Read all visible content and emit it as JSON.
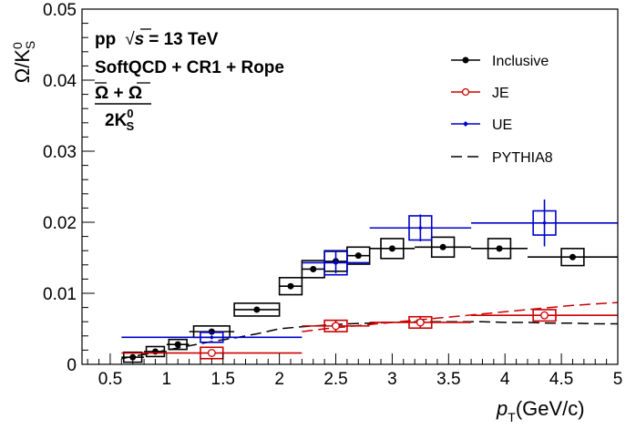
{
  "chart_data": {
    "type": "scatter",
    "title": "",
    "xlabel": {
      "main": "p",
      "sub": "T",
      "rest": "(GeV/c)"
    },
    "ylabel": {
      "main": "Ω/K",
      "sup": "0",
      "sub": "S"
    },
    "xlim": [
      0.25,
      5.0
    ],
    "ylim": [
      0,
      0.05
    ],
    "xticks": [
      0.5,
      1,
      1.5,
      2,
      2.5,
      3,
      3.5,
      4,
      4.5,
      5
    ],
    "xtick_labels": [
      "0.5",
      "1",
      "1.5",
      "2",
      "2.5",
      "3",
      "3.5",
      "4",
      "4.5",
      "5"
    ],
    "yticks": [
      0,
      0.01,
      0.02,
      0.03,
      0.04,
      0.05
    ],
    "ytick_labels": [
      "0",
      "0.01",
      "0.02",
      "0.03",
      "0.04",
      "0.05"
    ],
    "annotations": {
      "line1_pre": "pp",
      "line1_sqrt": "√",
      "line1_s": "s",
      "line1_post": "= 13 TeV",
      "line2": "SoftQCD + CR1 + Rope",
      "ratio_num": "Ω + Ω",
      "ratio_den_pre": "2K",
      "ratio_den_sup": "0",
      "ratio_den_sub": "S"
    },
    "legend": {
      "placement": "top-right",
      "entries": [
        "Inclusive",
        "JE",
        "UE",
        "PYTHIA8"
      ]
    },
    "series": [
      {
        "name": "Inclusive",
        "color": "#000000",
        "marker": "filled-circle",
        "points": [
          {
            "x": 0.7,
            "y": 0.001,
            "xlo": 0.6,
            "xhi": 0.8,
            "ylo": 0.001,
            "yhi": 0.001,
            "sx": 0.08,
            "sy": 0.0007
          },
          {
            "x": 0.9,
            "y": 0.0018,
            "xlo": 0.8,
            "xhi": 1.0,
            "ylo": 0.0018,
            "yhi": 0.0018,
            "sx": 0.08,
            "sy": 0.0007
          },
          {
            "x": 1.1,
            "y": 0.0028,
            "xlo": 1.0,
            "xhi": 1.2,
            "ylo": 0.0028,
            "yhi": 0.0028,
            "sx": 0.08,
            "sy": 0.0007
          },
          {
            "x": 1.4,
            "y": 0.0046,
            "xlo": 1.2,
            "xhi": 1.6,
            "ylo": 0.0042,
            "yhi": 0.005,
            "sx": 0.16,
            "sy": 0.0008
          },
          {
            "x": 1.8,
            "y": 0.0077,
            "xlo": 1.6,
            "xhi": 2.0,
            "ylo": 0.0077,
            "yhi": 0.0077,
            "sx": 0.2,
            "sy": 0.0009
          },
          {
            "x": 2.1,
            "y": 0.011,
            "xlo": 2.0,
            "xhi": 2.2,
            "ylo": 0.0106,
            "yhi": 0.0114,
            "sx": 0.1,
            "sy": 0.0012
          },
          {
            "x": 2.3,
            "y": 0.0134,
            "xlo": 2.2,
            "xhi": 2.4,
            "ylo": 0.013,
            "yhi": 0.0138,
            "sx": 0.1,
            "sy": 0.0012
          },
          {
            "x": 2.5,
            "y": 0.0145,
            "xlo": 2.4,
            "xhi": 2.6,
            "ylo": 0.014,
            "yhi": 0.015,
            "sx": 0.1,
            "sy": 0.0014
          },
          {
            "x": 2.7,
            "y": 0.0153,
            "xlo": 2.6,
            "xhi": 2.8,
            "ylo": 0.0149,
            "yhi": 0.0157,
            "sx": 0.1,
            "sy": 0.0012
          },
          {
            "x": 3.0,
            "y": 0.0163,
            "xlo": 2.8,
            "xhi": 3.2,
            "ylo": 0.0159,
            "yhi": 0.0167,
            "sx": 0.1,
            "sy": 0.0014
          },
          {
            "x": 3.45,
            "y": 0.0165,
            "xlo": 3.2,
            "xhi": 3.7,
            "ylo": 0.0161,
            "yhi": 0.0169,
            "sx": 0.1,
            "sy": 0.0014
          },
          {
            "x": 3.95,
            "y": 0.0163,
            "xlo": 3.7,
            "xhi": 4.2,
            "ylo": 0.0159,
            "yhi": 0.0167,
            "sx": 0.1,
            "sy": 0.0014
          },
          {
            "x": 4.6,
            "y": 0.0151,
            "xlo": 4.2,
            "xhi": 5.0,
            "ylo": 0.0147,
            "yhi": 0.0155,
            "sx": 0.1,
            "sy": 0.0012
          }
        ]
      },
      {
        "name": "JE",
        "color": "#cc0000",
        "marker": "open-circle",
        "points": [
          {
            "x": 1.4,
            "y": 0.0016,
            "xlo": 0.6,
            "xhi": 2.2,
            "ylo": 0.0016,
            "yhi": 0.0016,
            "sx": 0.1,
            "sy": 0.0008
          },
          {
            "x": 2.5,
            "y": 0.0054,
            "xlo": 2.2,
            "xhi": 2.8,
            "ylo": 0.0046,
            "yhi": 0.0062,
            "sx": 0.1,
            "sy": 0.0008
          },
          {
            "x": 3.25,
            "y": 0.0059,
            "xlo": 2.8,
            "xhi": 3.7,
            "ylo": 0.0052,
            "yhi": 0.0066,
            "sx": 0.1,
            "sy": 0.0008
          },
          {
            "x": 4.35,
            "y": 0.0069,
            "xlo": 3.7,
            "xhi": 5.0,
            "ylo": 0.0069,
            "yhi": 0.0069,
            "sx": 0.1,
            "sy": 0.0008
          }
        ]
      },
      {
        "name": "UE",
        "color": "#0000cc",
        "marker": "small-diamond",
        "points": [
          {
            "x": 1.4,
            "y": 0.0038,
            "xlo": 0.6,
            "xhi": 2.2,
            "ylo": 0.0038,
            "yhi": 0.0038,
            "sx": 0.1,
            "sy": 0.0007
          },
          {
            "x": 2.5,
            "y": 0.0143,
            "xlo": 2.2,
            "xhi": 2.8,
            "ylo": 0.0128,
            "yhi": 0.0158,
            "sx": 0.1,
            "sy": 0.0017
          },
          {
            "x": 3.25,
            "y": 0.0192,
            "xlo": 2.8,
            "xhi": 3.7,
            "ylo": 0.0173,
            "yhi": 0.0211,
            "sx": 0.1,
            "sy": 0.0017
          },
          {
            "x": 4.35,
            "y": 0.0199,
            "xlo": 3.7,
            "xhi": 5.0,
            "ylo": 0.0166,
            "yhi": 0.0232,
            "sx": 0.1,
            "sy": 0.0017
          }
        ]
      }
    ],
    "curves": [
      {
        "name": "PYTHIA8",
        "color": "#000000",
        "style": "dashed",
        "x": [
          0.6,
          0.8,
          1.0,
          1.2,
          1.4,
          1.6,
          1.8,
          2.0,
          2.2,
          2.4,
          2.6,
          2.8,
          3.0,
          3.2,
          3.4,
          3.6,
          3.8,
          4.0,
          4.2,
          4.4,
          4.6,
          4.8,
          5.0
        ],
        "y": [
          0.0008,
          0.0014,
          0.002,
          0.0026,
          0.0032,
          0.0037,
          0.0043,
          0.005,
          0.0053,
          0.0055,
          0.0057,
          0.0058,
          0.0059,
          0.006,
          0.006,
          0.006,
          0.006,
          0.0059,
          0.0059,
          0.0058,
          0.0058,
          0.0057,
          0.0057
        ]
      },
      {
        "name": "JE",
        "color": "#cc0000",
        "style": "dashed",
        "x": [
          2.2,
          2.4,
          2.6,
          2.8,
          3.0,
          3.2,
          3.4,
          3.6,
          3.8,
          4.0,
          4.2,
          4.4,
          4.6,
          4.8,
          5.0
        ],
        "y": [
          0.0046,
          0.005,
          0.0053,
          0.0056,
          0.0059,
          0.0062,
          0.0065,
          0.0068,
          0.0071,
          0.0074,
          0.0077,
          0.008,
          0.0083,
          0.0085,
          0.0087
        ]
      }
    ]
  }
}
